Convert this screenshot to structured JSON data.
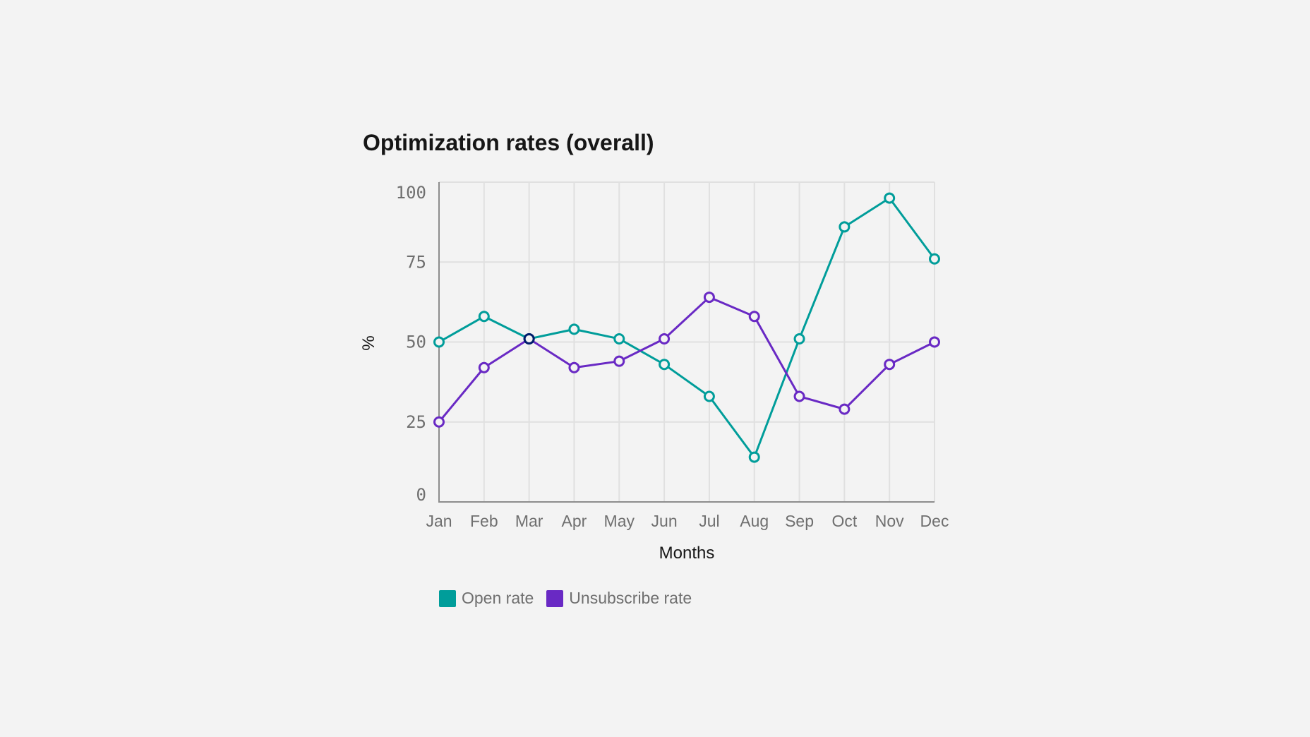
{
  "chart_data": {
    "type": "line",
    "title": "Optimization rates (overall)",
    "xlabel": "Months",
    "ylabel": "%",
    "categories": [
      "Jan",
      "Feb",
      "Mar",
      "Apr",
      "May",
      "Jun",
      "Jul",
      "Aug",
      "Sep",
      "Oct",
      "Nov",
      "Dec"
    ],
    "yticks": [
      0,
      25,
      50,
      75,
      100
    ],
    "ylim": [
      0,
      100
    ],
    "grid": true,
    "legend_position": "bottom-left",
    "series": [
      {
        "name": "Open rate",
        "color": "#009d9a",
        "values": [
          50,
          58,
          51,
          54,
          51,
          43,
          33,
          14,
          51,
          86,
          95,
          76
        ]
      },
      {
        "name": "Unsubscribe rate",
        "color": "#6929c4",
        "values": [
          25,
          42,
          51,
          42,
          44,
          51,
          64,
          58,
          33,
          29,
          43,
          50
        ]
      }
    ],
    "highlight": {
      "category": "Mar",
      "color": "#001d6c"
    }
  }
}
